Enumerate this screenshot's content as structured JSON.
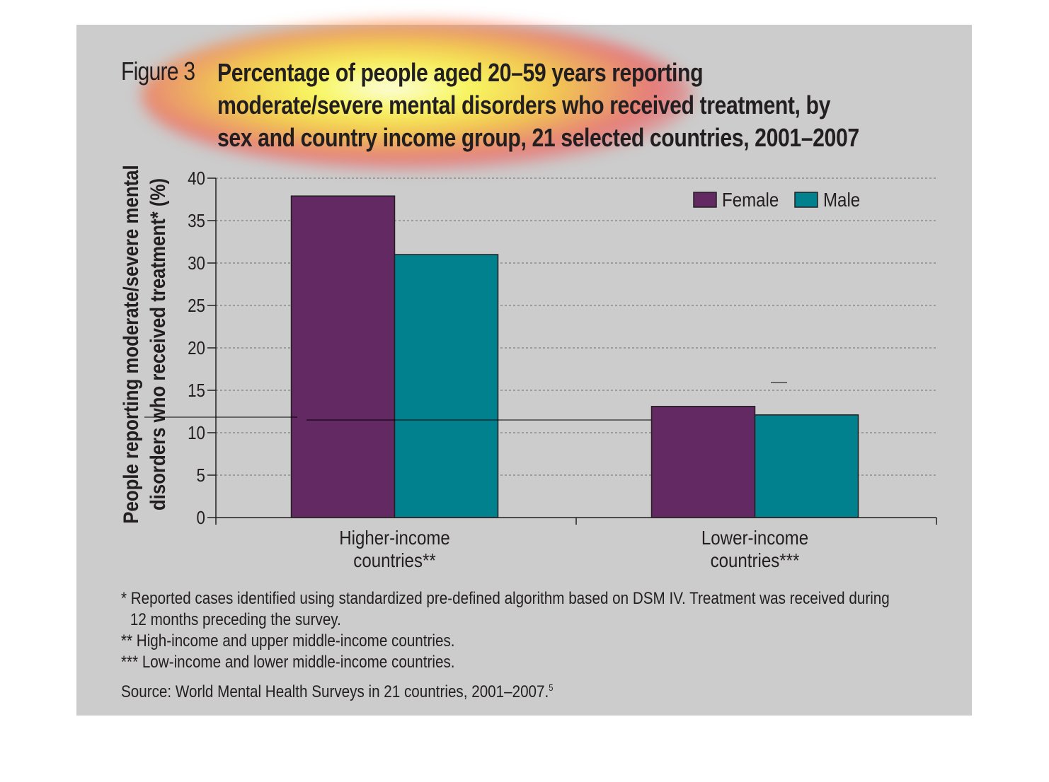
{
  "figure": {
    "label": "Figure 3",
    "title_lines": [
      "Percentage of people aged 20–59 years reporting",
      "moderate/severe mental disorders who received treatment, by",
      "sex and country income group, 21 selected countries, 2001–2007"
    ]
  },
  "chart_data": {
    "type": "bar",
    "title": "Percentage of people aged 20–59 years reporting moderate/severe mental disorders who received treatment, by sex and country income group, 21 selected countries, 2001–2007",
    "ylabel_lines": [
      "People reporting moderate/severe mental",
      "disorders who received treatment* (%)"
    ],
    "categories": [
      [
        "Higher-income",
        "countries**"
      ],
      [
        "Lower-income",
        "countries***"
      ]
    ],
    "series": [
      {
        "name": "Female",
        "color": "#622963",
        "values": [
          37.9,
          13.1
        ]
      },
      {
        "name": "Male",
        "color": "#00818d",
        "values": [
          31.0,
          12.1
        ]
      }
    ],
    "ylim": [
      0,
      40
    ],
    "yticks": [
      0,
      5,
      10,
      15,
      20,
      25,
      30,
      35,
      40
    ],
    "grid": true,
    "legend_position": "top-right"
  },
  "footnotes": [
    "* Reported cases identified using standardized pre-defined algorithm based on DSM IV. Treatment was received during",
    "12 months preceding the survey.",
    "** High-income and upper middle-income countries.",
    "*** Low-income and lower middle-income countries."
  ],
  "source": {
    "text": "Source: World Mental Health Surveys in 21 countries, 2001–2007.",
    "superscript": "5"
  }
}
